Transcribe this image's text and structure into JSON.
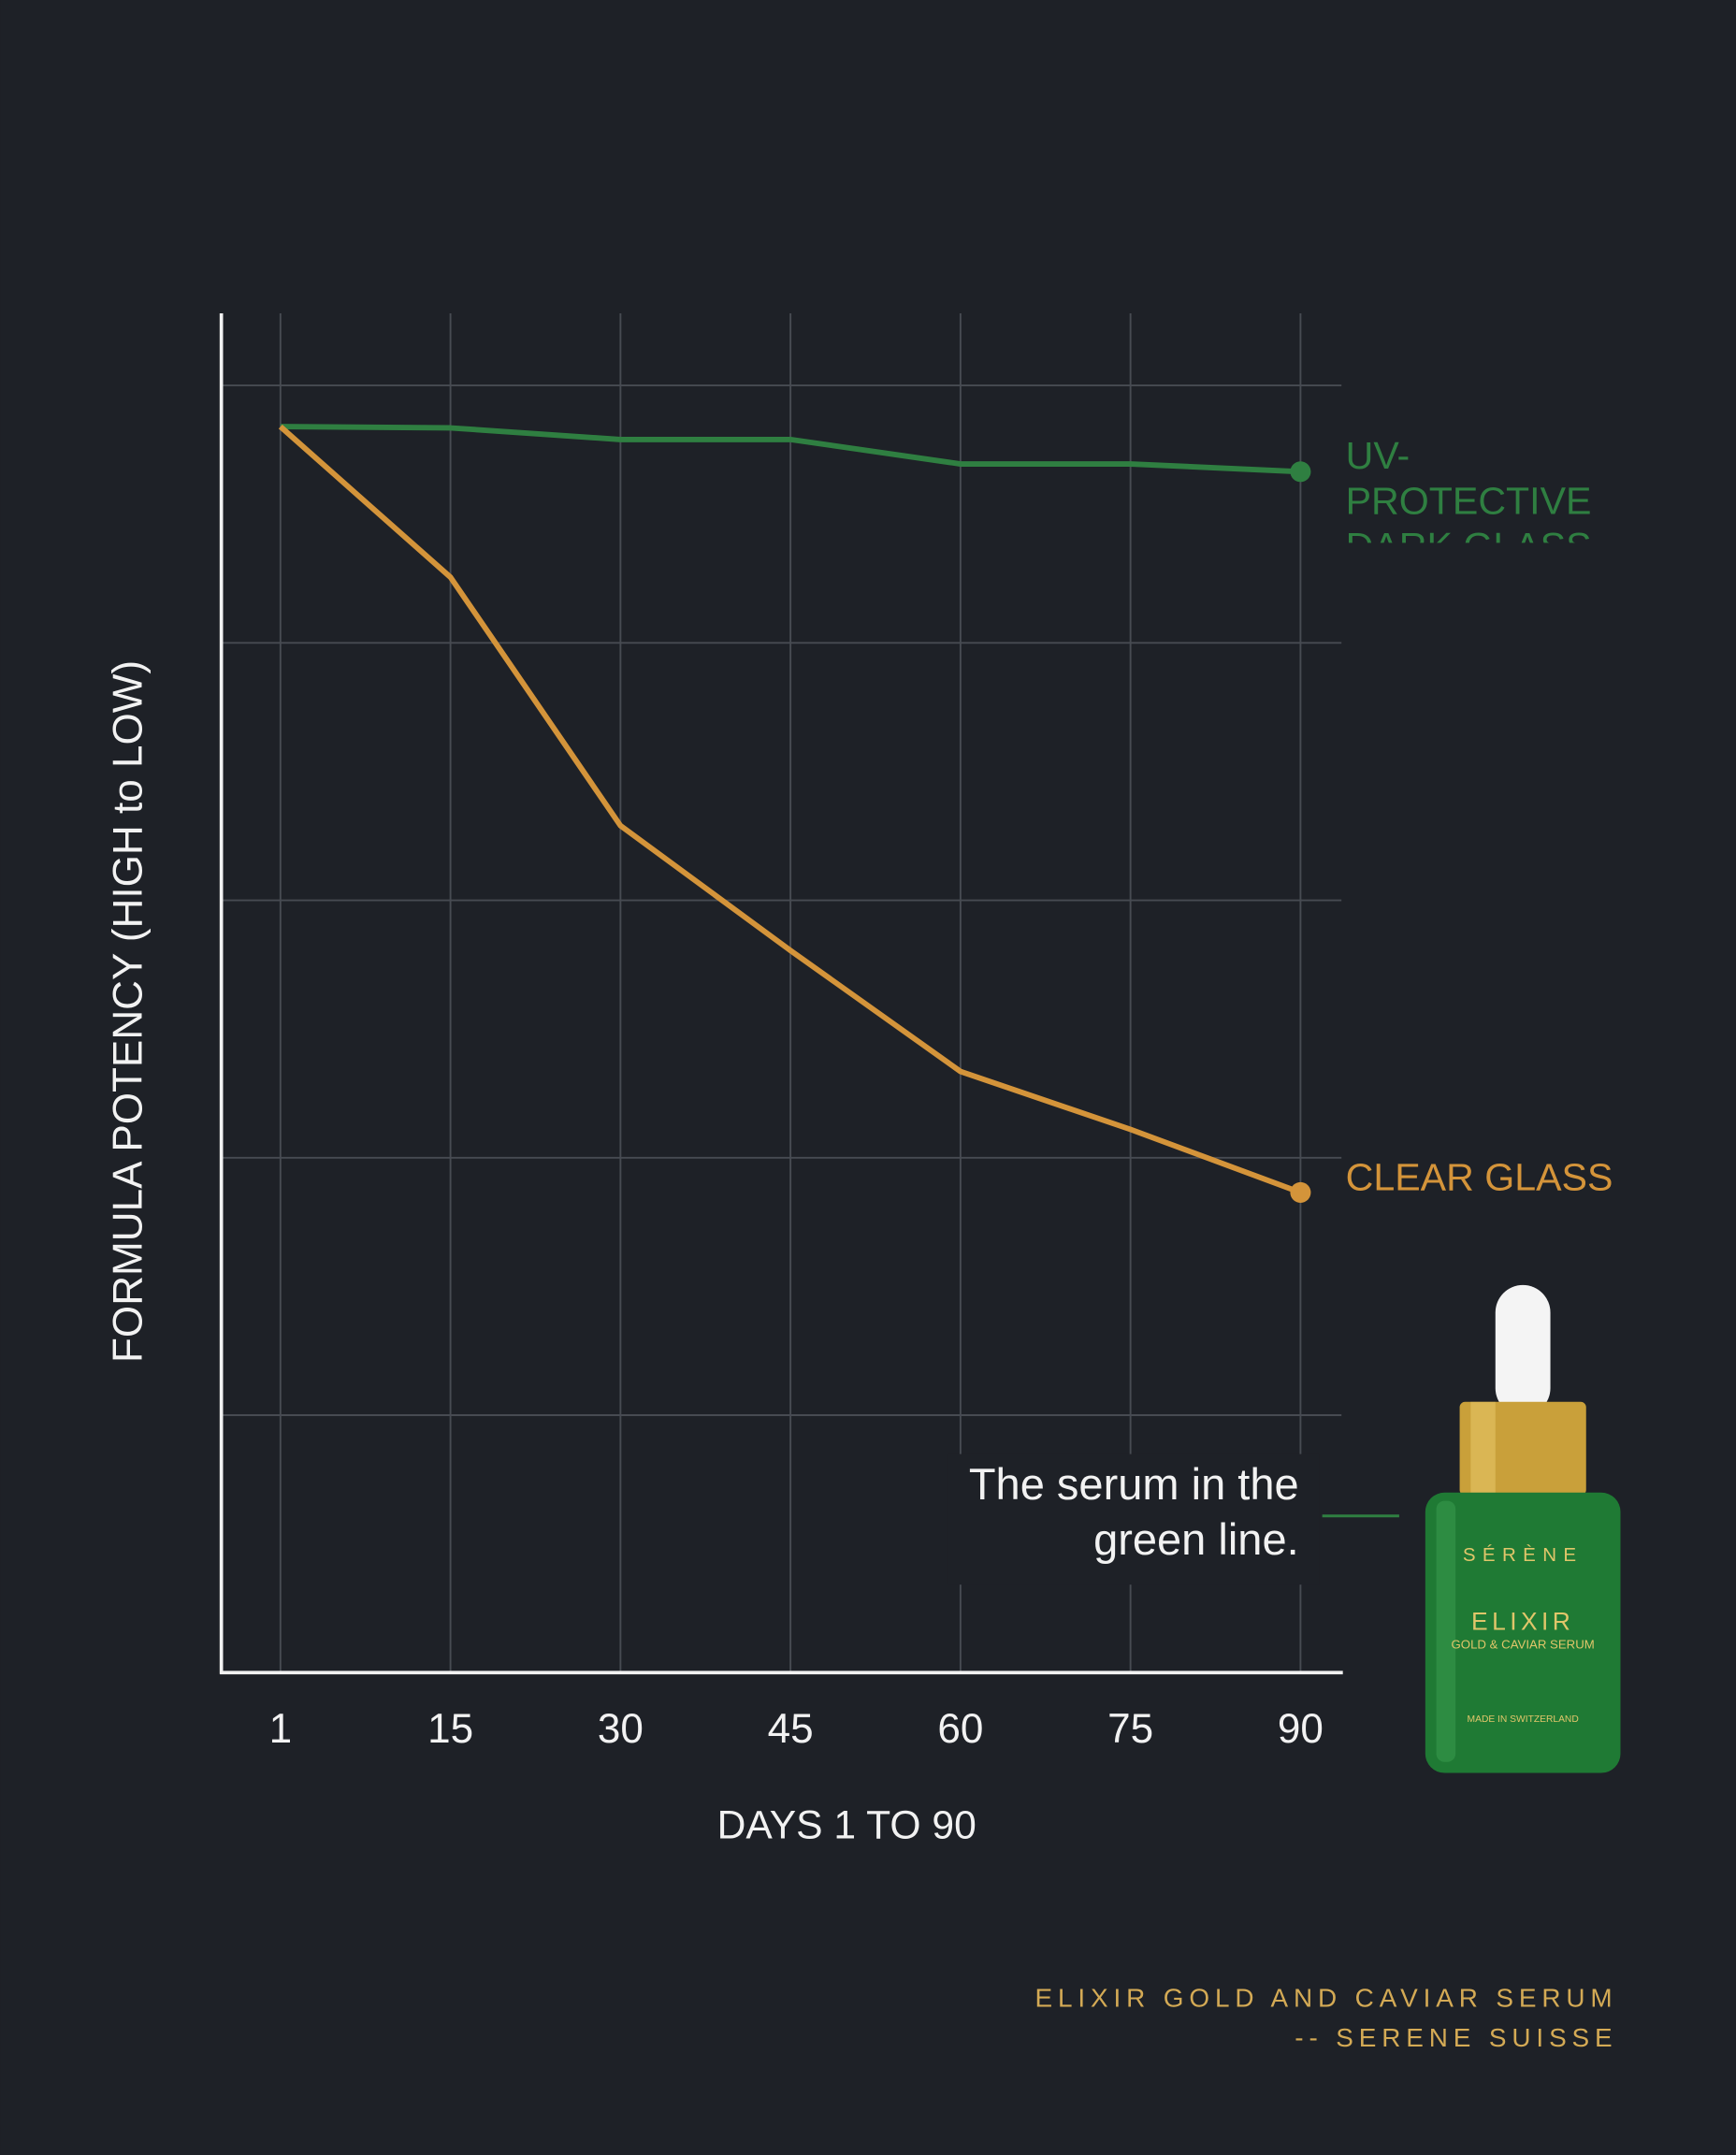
{
  "chart_data": {
    "type": "line",
    "y_label": "FORMULA POTENCY (HIGH to LOW)",
    "x_label": "DAYS 1 TO 90",
    "categories": [
      "1",
      "15",
      "30",
      "45",
      "60",
      "75",
      "90"
    ],
    "series": [
      {
        "name": "UV-PROTECTIVE DARK GLASS",
        "color": "#2f7f41",
        "values": [
          96.8,
          96.7,
          95.8,
          95.8,
          93.9,
          93.9,
          93.3
        ]
      },
      {
        "name": "CLEAR GLASS",
        "color": "#d4943a",
        "values": [
          96.8,
          85.1,
          65.8,
          56.1,
          46.7,
          42.2,
          37.3
        ]
      }
    ],
    "ylim": [
      0,
      105.6
    ],
    "yticks": [
      20,
      40,
      60,
      80,
      100
    ],
    "grid": true,
    "annotation": "The serum in the green line.",
    "footer": [
      "ELIXIR GOLD AND CAVIAR SERUM",
      "-- SERENE SUISSE"
    ]
  },
  "product": {
    "brand": "SÉRÈNE",
    "name": "ELIXIR",
    "subtitle": "GOLD & CAVIAR SERUM",
    "origin": "MADE IN SWITZERLAND"
  }
}
